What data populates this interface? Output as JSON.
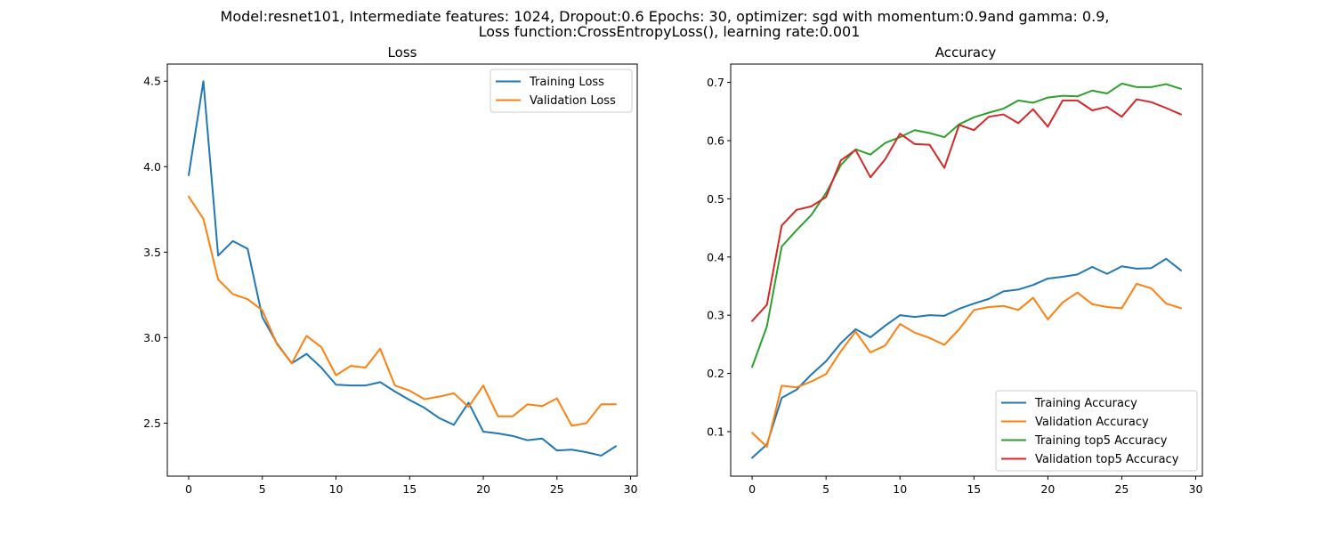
{
  "suptitle": {
    "line1": "Model:resnet101, Intermediate features: 1024, Dropout:0.6 Epochs: 30, optimizer: sgd with momentum:0.9and gamma: 0.9,",
    "line2": "Loss function:CrossEntropyLoss(), learning rate:0.001"
  },
  "chart_data": [
    {
      "type": "line",
      "title": "Loss",
      "xlabel": "",
      "ylabel": "",
      "xlim": [
        -1.45,
        30.45
      ],
      "ylim": [
        2.19,
        4.6
      ],
      "xticks": [
        0,
        5,
        10,
        15,
        20,
        25,
        30
      ],
      "xtick_labels": [
        "0",
        "5",
        "10",
        "15",
        "20",
        "25",
        "30"
      ],
      "yticks": [
        2.5,
        3.0,
        3.5,
        4.0,
        4.5
      ],
      "ytick_labels": [
        "2.5",
        "3.0",
        "3.5",
        "4.0",
        "4.5"
      ],
      "legend_position": "top-right",
      "x": [
        0,
        1,
        2,
        3,
        4,
        5,
        6,
        7,
        8,
        9,
        10,
        11,
        12,
        13,
        14,
        15,
        16,
        17,
        18,
        19,
        20,
        21,
        22,
        23,
        24,
        25,
        26,
        27,
        28,
        29
      ],
      "series": [
        {
          "name": "Training Loss",
          "color": "#1f77b4",
          "values": [
            3.95,
            4.5,
            3.48,
            3.565,
            3.52,
            3.12,
            2.965,
            2.85,
            2.905,
            2.825,
            2.725,
            2.72,
            2.72,
            2.74,
            2.685,
            2.635,
            2.59,
            2.53,
            2.49,
            2.62,
            2.45,
            2.44,
            2.425,
            2.4,
            2.41,
            2.34,
            2.345,
            2.33,
            2.31,
            2.365
          ]
        },
        {
          "name": "Validation Loss",
          "color": "#ff7f0e",
          "values": [
            3.825,
            3.695,
            3.34,
            3.255,
            3.225,
            3.16,
            2.96,
            2.85,
            3.01,
            2.945,
            2.78,
            2.835,
            2.825,
            2.935,
            2.72,
            2.69,
            2.64,
            2.655,
            2.675,
            2.595,
            2.72,
            2.54,
            2.54,
            2.61,
            2.6,
            2.645,
            2.485,
            2.5,
            2.61,
            2.61
          ]
        }
      ]
    },
    {
      "type": "line",
      "title": "Accuracy",
      "xlabel": "",
      "ylabel": "",
      "xlim": [
        -1.45,
        30.45
      ],
      "ylim": [
        0.0235,
        0.7315
      ],
      "xticks": [
        0,
        5,
        10,
        15,
        20,
        25,
        30
      ],
      "xtick_labels": [
        "0",
        "5",
        "10",
        "15",
        "20",
        "25",
        "30"
      ],
      "yticks": [
        0.1,
        0.2,
        0.3,
        0.4,
        0.5,
        0.6,
        0.7
      ],
      "ytick_labels": [
        "0.1",
        "0.2",
        "0.3",
        "0.4",
        "0.5",
        "0.6",
        "0.7"
      ],
      "legend_position": "bottom-right",
      "x": [
        0,
        1,
        2,
        3,
        4,
        5,
        6,
        7,
        8,
        9,
        10,
        11,
        12,
        13,
        14,
        15,
        16,
        17,
        18,
        19,
        20,
        21,
        22,
        23,
        24,
        25,
        26,
        27,
        28,
        29
      ],
      "series": [
        {
          "name": "Training Accuracy",
          "color": "#1f77b4",
          "values": [
            0.055,
            0.078,
            0.158,
            0.172,
            0.198,
            0.221,
            0.252,
            0.276,
            0.262,
            0.282,
            0.3,
            0.297,
            0.3,
            0.299,
            0.311,
            0.32,
            0.328,
            0.341,
            0.344,
            0.352,
            0.363,
            0.366,
            0.37,
            0.383,
            0.371,
            0.384,
            0.38,
            0.381,
            0.397,
            0.377
          ]
        },
        {
          "name": "Validation Accuracy",
          "color": "#ff7f0e",
          "values": [
            0.098,
            0.074,
            0.179,
            0.176,
            0.186,
            0.199,
            0.238,
            0.272,
            0.236,
            0.248,
            0.285,
            0.27,
            0.261,
            0.249,
            0.276,
            0.309,
            0.314,
            0.316,
            0.309,
            0.33,
            0.293,
            0.322,
            0.339,
            0.319,
            0.314,
            0.312,
            0.354,
            0.346,
            0.32,
            0.312
          ]
        },
        {
          "name": "Training top5 Accuracy",
          "color": "#2ca02c",
          "values": [
            0.211,
            0.281,
            0.418,
            0.446,
            0.472,
            0.51,
            0.558,
            0.585,
            0.576,
            0.596,
            0.606,
            0.618,
            0.613,
            0.606,
            0.628,
            0.64,
            0.648,
            0.655,
            0.669,
            0.665,
            0.674,
            0.677,
            0.676,
            0.686,
            0.681,
            0.698,
            0.692,
            0.692,
            0.697,
            0.689
          ]
        },
        {
          "name": "Validation top5 Accuracy",
          "color": "#d62728",
          "values": [
            0.29,
            0.318,
            0.454,
            0.481,
            0.487,
            0.503,
            0.566,
            0.584,
            0.537,
            0.568,
            0.612,
            0.594,
            0.593,
            0.553,
            0.627,
            0.618,
            0.641,
            0.645,
            0.63,
            0.654,
            0.624,
            0.669,
            0.669,
            0.652,
            0.658,
            0.641,
            0.671,
            0.666,
            0.656,
            0.645
          ]
        }
      ]
    }
  ]
}
